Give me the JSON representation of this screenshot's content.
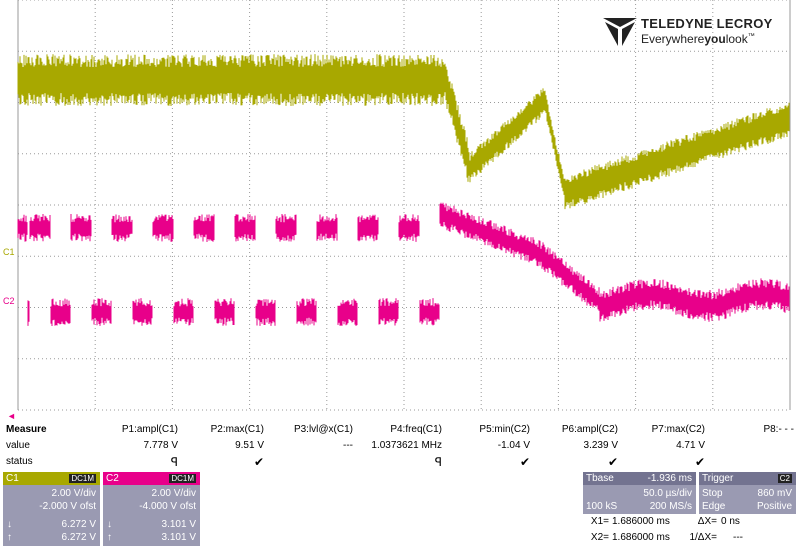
{
  "brand": {
    "name": "TELEDYNE LECROY",
    "tagline_prefix": "Everywhere",
    "tagline_bold": "you",
    "tagline_suffix": "look",
    "tm": "™"
  },
  "scope": {
    "grid_color": "#9a9a9a",
    "ch1_color": "#a8a800",
    "ch2_color": "#e8008a",
    "ch1_label": "C1",
    "ch2_label": "C2",
    "trigger_marker": "◄"
  },
  "measure": {
    "row_labels": [
      "Measure",
      "value",
      "status"
    ],
    "params": [
      {
        "name": "P1:ampl(C1)",
        "value": "7.778 V",
        "status": "ꟼ"
      },
      {
        "name": "P2:max(C1)",
        "value": "9.51 V",
        "status": "✔"
      },
      {
        "name": "P3:lvl@x(C1)",
        "value": "---",
        "status": ""
      },
      {
        "name": "P4:freq(C1)",
        "value": "1.0373621 MHz",
        "status": "ꟼ"
      },
      {
        "name": "P5:min(C2)",
        "value": "-1.04 V",
        "status": "✔"
      },
      {
        "name": "P6:ampl(C2)",
        "value": "3.239 V",
        "status": "✔"
      },
      {
        "name": "P7:max(C2)",
        "value": "4.71 V",
        "status": "✔"
      },
      {
        "name": "P8:- - -",
        "value": "",
        "status": ""
      }
    ]
  },
  "channels": [
    {
      "label": "C1",
      "coupling": "DC1M",
      "vdiv": "2.00 V/div",
      "offset": "-2.000 V ofst",
      "down": "6.272 V",
      "up": "6.272 V",
      "color": "#a8a800"
    },
    {
      "label": "C2",
      "coupling": "DC1M",
      "vdiv": "2.00 V/div",
      "offset": "-4.000 V ofst",
      "down": "3.101 V",
      "up": "3.101 V",
      "color": "#e8008a"
    }
  ],
  "timebase": {
    "label": "Tbase",
    "delay": "-1.936 ms",
    "tdiv": "50.0 µs/div",
    "samples": "100 kS",
    "rate": "200 MS/s"
  },
  "trigger": {
    "label": "Trigger",
    "source": "C2",
    "mode": "Stop",
    "level": "860 mV",
    "type": "Edge",
    "slope": "Positive"
  },
  "cursors": {
    "x1_label": "X1=",
    "x1": "1.686000 ms",
    "dx_label": "ΔX=",
    "dx": "0 ns",
    "x2_label": "X2=",
    "x2": "1.686000 ms",
    "inv_label": "1/ΔX=",
    "inv": "---"
  }
}
